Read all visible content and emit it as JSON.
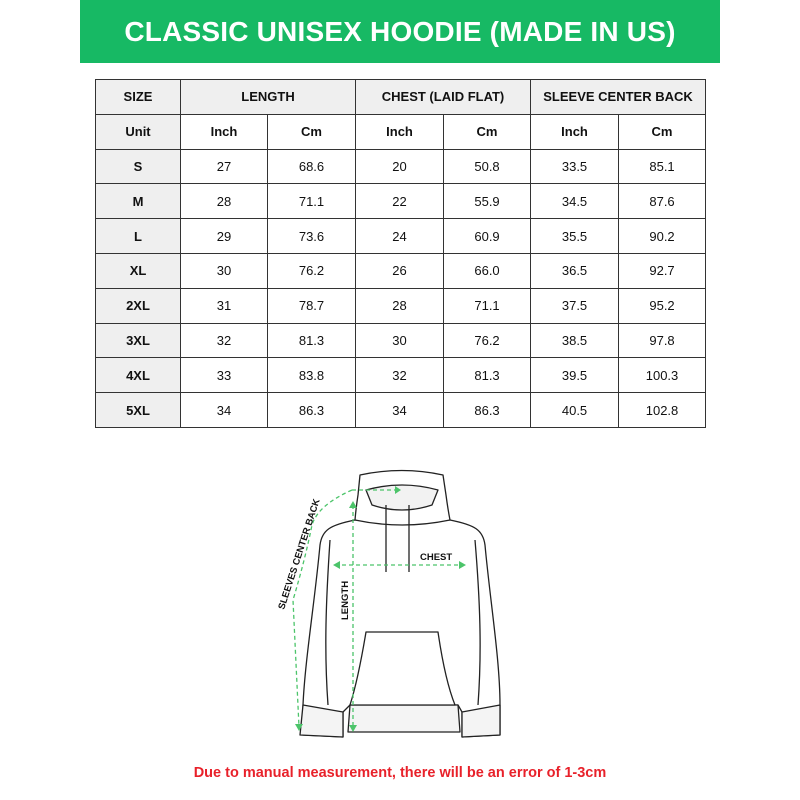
{
  "title": "CLASSIC UNISEX HOODIE (MADE IN US)",
  "colors": {
    "banner": "#17b964",
    "note": "#e8212a",
    "measure_lines": "#4cc46a"
  },
  "table": {
    "headers": [
      "SIZE",
      "LENGTH",
      "CHEST (LAID FLAT)",
      "SLEEVE CENTER BACK"
    ],
    "unit_row": [
      "Unit",
      "Inch",
      "Cm",
      "Inch",
      "Cm",
      "Inch",
      "Cm"
    ],
    "rows": [
      [
        "S",
        "27",
        "68.6",
        "20",
        "50.8",
        "33.5",
        "85.1"
      ],
      [
        "M",
        "28",
        "71.1",
        "22",
        "55.9",
        "34.5",
        "87.6"
      ],
      [
        "L",
        "29",
        "73.6",
        "24",
        "60.9",
        "35.5",
        "90.2"
      ],
      [
        "XL",
        "30",
        "76.2",
        "26",
        "66.0",
        "36.5",
        "92.7"
      ],
      [
        "2XL",
        "31",
        "78.7",
        "28",
        "71.1",
        "37.5",
        "95.2"
      ],
      [
        "3XL",
        "32",
        "81.3",
        "30",
        "76.2",
        "38.5",
        "97.8"
      ],
      [
        "4XL",
        "33",
        "83.8",
        "32",
        "81.3",
        "39.5",
        "100.3"
      ],
      [
        "5XL",
        "34",
        "86.3",
        "34",
        "86.3",
        "40.5",
        "102.8"
      ]
    ]
  },
  "diagram": {
    "chest_label": "CHEST",
    "length_label": "LENGTH",
    "sleeve_label": "SLEEVES CENTER BACK"
  },
  "note": "Due to manual measurement, there will be an error of 1-3cm"
}
